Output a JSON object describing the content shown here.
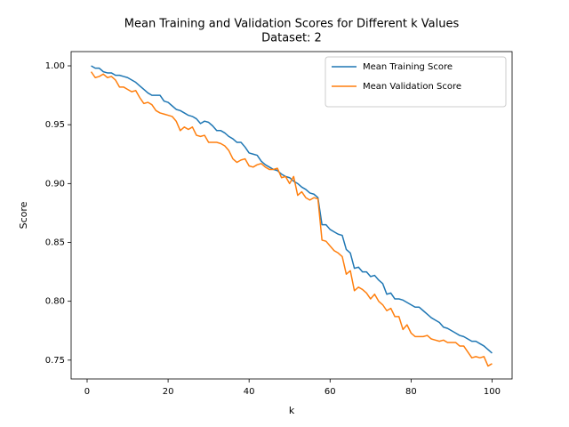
{
  "chart_data": {
    "type": "line",
    "title": "Mean Training and Validation Scores for Different k Values",
    "subtitle": "Dataset: 2",
    "x_label": "k",
    "y_label": "Score",
    "x": [
      1,
      2,
      3,
      4,
      5,
      6,
      7,
      8,
      9,
      10,
      11,
      12,
      13,
      14,
      15,
      16,
      17,
      18,
      19,
      20,
      21,
      22,
      23,
      24,
      25,
      26,
      27,
      28,
      29,
      30,
      31,
      32,
      33,
      34,
      35,
      36,
      37,
      38,
      39,
      40,
      41,
      42,
      43,
      44,
      45,
      46,
      47,
      48,
      49,
      50,
      51,
      52,
      53,
      54,
      55,
      56,
      57,
      58,
      59,
      60,
      61,
      62,
      63,
      64,
      65,
      66,
      67,
      68,
      69,
      70,
      71,
      72,
      73,
      74,
      75,
      76,
      77,
      78,
      79,
      80,
      81,
      82,
      83,
      84,
      85,
      86,
      87,
      88,
      89,
      90,
      91,
      92,
      93,
      94,
      95,
      96,
      97,
      98,
      99,
      100
    ],
    "series": [
      {
        "name": "Mean Training Score",
        "color": "#1f77b4",
        "values": [
          1.0,
          0.998,
          0.998,
          0.995,
          0.994,
          0.994,
          0.992,
          0.992,
          0.991,
          0.99,
          0.988,
          0.986,
          0.983,
          0.98,
          0.977,
          0.975,
          0.975,
          0.975,
          0.97,
          0.969,
          0.966,
          0.963,
          0.962,
          0.96,
          0.958,
          0.957,
          0.955,
          0.951,
          0.953,
          0.952,
          0.949,
          0.945,
          0.945,
          0.943,
          0.94,
          0.938,
          0.935,
          0.935,
          0.931,
          0.926,
          0.925,
          0.924,
          0.919,
          0.916,
          0.914,
          0.912,
          0.911,
          0.908,
          0.906,
          0.905,
          0.902,
          0.9,
          0.897,
          0.895,
          0.892,
          0.891,
          0.888,
          0.865,
          0.865,
          0.861,
          0.859,
          0.857,
          0.856,
          0.844,
          0.841,
          0.828,
          0.829,
          0.825,
          0.825,
          0.821,
          0.822,
          0.818,
          0.815,
          0.806,
          0.807,
          0.802,
          0.802,
          0.801,
          0.799,
          0.797,
          0.795,
          0.795,
          0.792,
          0.789,
          0.786,
          0.784,
          0.782,
          0.778,
          0.777,
          0.775,
          0.773,
          0.771,
          0.77,
          0.768,
          0.766,
          0.766,
          0.764,
          0.762,
          0.759,
          0.756
        ]
      },
      {
        "name": "Mean Validation Score",
        "color": "#ff7f0e",
        "values": [
          0.995,
          0.99,
          0.991,
          0.993,
          0.99,
          0.991,
          0.988,
          0.982,
          0.982,
          0.98,
          0.978,
          0.979,
          0.973,
          0.968,
          0.969,
          0.967,
          0.962,
          0.96,
          0.959,
          0.958,
          0.957,
          0.953,
          0.945,
          0.948,
          0.946,
          0.948,
          0.941,
          0.94,
          0.941,
          0.935,
          0.935,
          0.935,
          0.934,
          0.932,
          0.928,
          0.921,
          0.918,
          0.92,
          0.921,
          0.915,
          0.914,
          0.916,
          0.917,
          0.914,
          0.912,
          0.912,
          0.913,
          0.905,
          0.906,
          0.9,
          0.906,
          0.89,
          0.893,
          0.888,
          0.886,
          0.888,
          0.887,
          0.852,
          0.851,
          0.847,
          0.843,
          0.841,
          0.838,
          0.823,
          0.826,
          0.809,
          0.812,
          0.81,
          0.807,
          0.802,
          0.806,
          0.8,
          0.797,
          0.792,
          0.794,
          0.787,
          0.787,
          0.776,
          0.78,
          0.773,
          0.77,
          0.77,
          0.77,
          0.771,
          0.768,
          0.767,
          0.766,
          0.767,
          0.765,
          0.765,
          0.765,
          0.762,
          0.762,
          0.757,
          0.752,
          0.753,
          0.752,
          0.753,
          0.745,
          0.747
        ]
      }
    ],
    "xlim": [
      -3.95,
      104.95
    ],
    "xticks": [
      0,
      20,
      40,
      60,
      80,
      100
    ],
    "ylim": [
      0.734,
      1.0121
    ],
    "yticks": [
      0.75,
      {
        "value": 0.8,
        "label": "0.80"
      },
      0.85,
      {
        "value": 0.9,
        "label": "0.90"
      },
      0.95,
      {
        "value": 1,
        "label": "1.00"
      }
    ],
    "legend": "upper right",
    "grid": false
  }
}
